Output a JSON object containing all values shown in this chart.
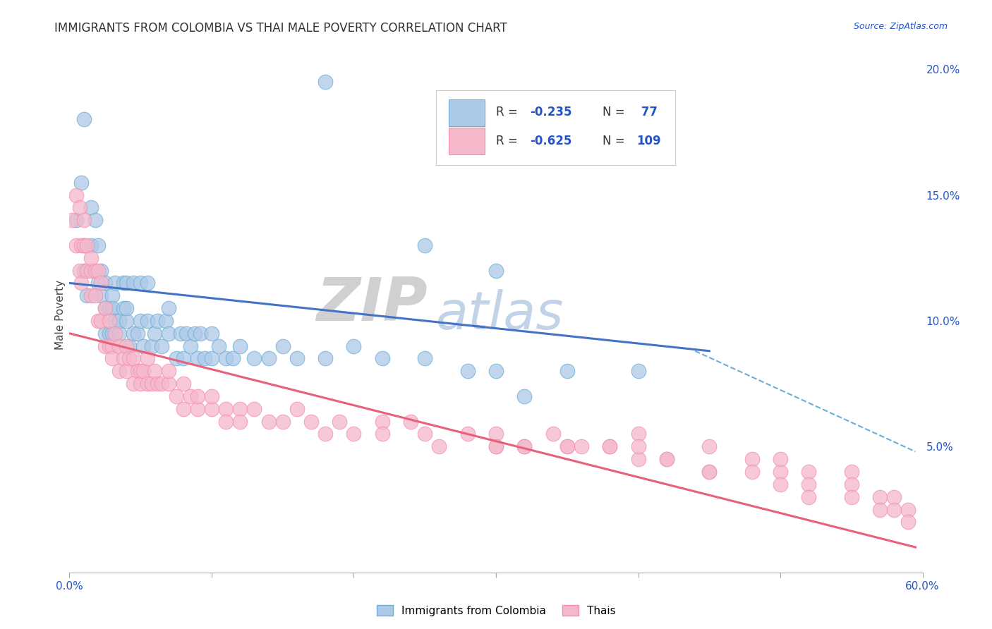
{
  "title": "IMMIGRANTS FROM COLOMBIA VS THAI MALE POVERTY CORRELATION CHART",
  "source_text": "Source: ZipAtlas.com",
  "ylabel": "Male Poverty",
  "xlim": [
    0.0,
    0.6
  ],
  "ylim": [
    0.0,
    0.205
  ],
  "ytick_right_labels": [
    "5.0%",
    "10.0%",
    "15.0%",
    "20.0%"
  ],
  "ytick_right_values": [
    0.05,
    0.1,
    0.15,
    0.2
  ],
  "colombia_R": -0.235,
  "colombia_N": 77,
  "thai_R": -0.625,
  "thai_N": 109,
  "colombia_color": "#adc9e8",
  "thai_color": "#f5b8cb",
  "colombia_edge_color": "#6baed6",
  "thai_edge_color": "#f48fb1",
  "colombia_line_color": "#4472c4",
  "thai_line_color": "#e8607a",
  "dashed_line_color": "#6baed6",
  "background_color": "#ffffff",
  "grid_color": "#d0d0d0",
  "watermark_zip_color": "#c8c8cc",
  "watermark_atlas_color": "#b8cce4",
  "legend_blue_color": "#2255cc",
  "legend_R_color": "#2255cc",
  "colombia_scatter_x": [
    0.005,
    0.008,
    0.01,
    0.01,
    0.01,
    0.012,
    0.015,
    0.015,
    0.018,
    0.02,
    0.02,
    0.022,
    0.022,
    0.025,
    0.025,
    0.025,
    0.028,
    0.028,
    0.03,
    0.03,
    0.03,
    0.032,
    0.032,
    0.035,
    0.035,
    0.038,
    0.038,
    0.04,
    0.04,
    0.04,
    0.042,
    0.045,
    0.045,
    0.048,
    0.05,
    0.05,
    0.052,
    0.055,
    0.055,
    0.058,
    0.06,
    0.062,
    0.065,
    0.068,
    0.07,
    0.07,
    0.075,
    0.078,
    0.08,
    0.082,
    0.085,
    0.088,
    0.09,
    0.092,
    0.095,
    0.1,
    0.1,
    0.105,
    0.11,
    0.115,
    0.12,
    0.13,
    0.14,
    0.15,
    0.16,
    0.18,
    0.2,
    0.22,
    0.25,
    0.28,
    0.3,
    0.35,
    0.3,
    0.18,
    0.25,
    0.32,
    0.4
  ],
  "colombia_scatter_y": [
    0.14,
    0.155,
    0.13,
    0.12,
    0.18,
    0.11,
    0.145,
    0.13,
    0.14,
    0.115,
    0.13,
    0.12,
    0.11,
    0.115,
    0.105,
    0.095,
    0.105,
    0.095,
    0.11,
    0.105,
    0.095,
    0.115,
    0.1,
    0.095,
    0.1,
    0.115,
    0.105,
    0.1,
    0.115,
    0.105,
    0.09,
    0.095,
    0.115,
    0.095,
    0.1,
    0.115,
    0.09,
    0.115,
    0.1,
    0.09,
    0.095,
    0.1,
    0.09,
    0.1,
    0.095,
    0.105,
    0.085,
    0.095,
    0.085,
    0.095,
    0.09,
    0.095,
    0.085,
    0.095,
    0.085,
    0.085,
    0.095,
    0.09,
    0.085,
    0.085,
    0.09,
    0.085,
    0.085,
    0.09,
    0.085,
    0.085,
    0.09,
    0.085,
    0.085,
    0.08,
    0.08,
    0.08,
    0.12,
    0.195,
    0.13,
    0.07,
    0.08
  ],
  "thai_scatter_x": [
    0.002,
    0.005,
    0.005,
    0.007,
    0.007,
    0.008,
    0.008,
    0.01,
    0.01,
    0.012,
    0.012,
    0.015,
    0.015,
    0.015,
    0.018,
    0.018,
    0.02,
    0.02,
    0.022,
    0.022,
    0.025,
    0.025,
    0.028,
    0.028,
    0.03,
    0.03,
    0.032,
    0.035,
    0.035,
    0.038,
    0.04,
    0.04,
    0.042,
    0.045,
    0.045,
    0.048,
    0.05,
    0.05,
    0.052,
    0.055,
    0.055,
    0.058,
    0.06,
    0.062,
    0.065,
    0.07,
    0.07,
    0.075,
    0.08,
    0.08,
    0.085,
    0.09,
    0.09,
    0.1,
    0.1,
    0.11,
    0.11,
    0.12,
    0.12,
    0.13,
    0.14,
    0.15,
    0.16,
    0.17,
    0.18,
    0.19,
    0.2,
    0.22,
    0.22,
    0.24,
    0.25,
    0.26,
    0.28,
    0.3,
    0.3,
    0.32,
    0.34,
    0.35,
    0.36,
    0.38,
    0.4,
    0.4,
    0.42,
    0.45,
    0.45,
    0.48,
    0.5,
    0.5,
    0.52,
    0.52,
    0.55,
    0.55,
    0.57,
    0.58,
    0.58,
    0.59,
    0.59,
    0.52,
    0.55,
    0.57,
    0.45,
    0.48,
    0.5,
    0.4,
    0.42,
    0.38,
    0.35,
    0.32,
    0.3
  ],
  "thai_scatter_y": [
    0.14,
    0.15,
    0.13,
    0.145,
    0.12,
    0.13,
    0.115,
    0.14,
    0.13,
    0.12,
    0.13,
    0.12,
    0.125,
    0.11,
    0.12,
    0.11,
    0.12,
    0.1,
    0.115,
    0.1,
    0.105,
    0.09,
    0.1,
    0.09,
    0.09,
    0.085,
    0.095,
    0.09,
    0.08,
    0.085,
    0.09,
    0.08,
    0.085,
    0.085,
    0.075,
    0.08,
    0.08,
    0.075,
    0.08,
    0.075,
    0.085,
    0.075,
    0.08,
    0.075,
    0.075,
    0.075,
    0.08,
    0.07,
    0.075,
    0.065,
    0.07,
    0.065,
    0.07,
    0.065,
    0.07,
    0.065,
    0.06,
    0.065,
    0.06,
    0.065,
    0.06,
    0.06,
    0.065,
    0.06,
    0.055,
    0.06,
    0.055,
    0.06,
    0.055,
    0.06,
    0.055,
    0.05,
    0.055,
    0.05,
    0.055,
    0.05,
    0.055,
    0.05,
    0.05,
    0.05,
    0.045,
    0.055,
    0.045,
    0.05,
    0.04,
    0.045,
    0.04,
    0.045,
    0.04,
    0.035,
    0.04,
    0.035,
    0.03,
    0.03,
    0.025,
    0.025,
    0.02,
    0.03,
    0.03,
    0.025,
    0.04,
    0.04,
    0.035,
    0.05,
    0.045,
    0.05,
    0.05,
    0.05,
    0.05
  ],
  "colombia_line_x": [
    0.0,
    0.45
  ],
  "colombia_line_y": [
    0.115,
    0.088
  ],
  "thai_line_x": [
    0.0,
    0.595
  ],
  "thai_line_y": [
    0.095,
    0.01
  ],
  "dashed_line_x": [
    0.44,
    0.595
  ],
  "dashed_line_y": [
    0.088,
    0.048
  ]
}
